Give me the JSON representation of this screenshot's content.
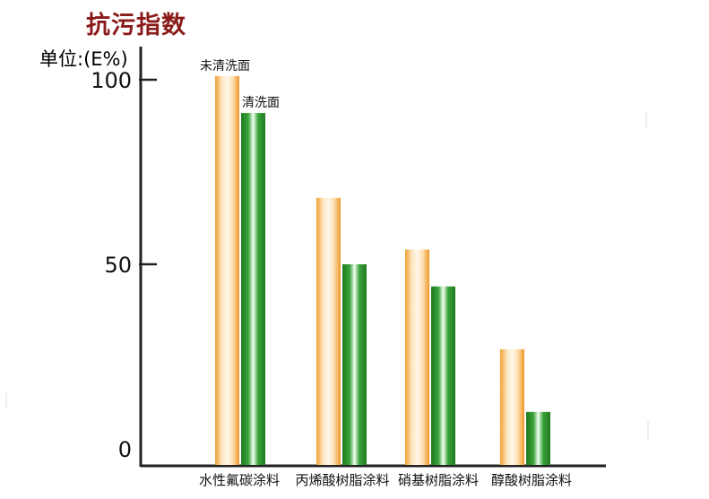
{
  "chart_data": {
    "type": "bar",
    "title": "抗污指数",
    "ylabel": "单位:(E%)",
    "xlabel": "",
    "ylim": [
      0,
      100
    ],
    "yticks": [
      0,
      50,
      100
    ],
    "categories": [
      "水性氟碳涂料",
      "丙烯酸树脂涂料",
      "硝基树脂涂料",
      "醇酸树脂涂料"
    ],
    "series": [
      {
        "name": "未清洗面",
        "values": [
          101,
          68,
          54,
          27
        ],
        "color": "#f2a033"
      },
      {
        "name": "清洗面",
        "values": [
          91,
          50,
          44,
          10
        ],
        "color": "#2e8b2e"
      }
    ],
    "grid": false,
    "legend": "bar-top labels on first group"
  }
}
